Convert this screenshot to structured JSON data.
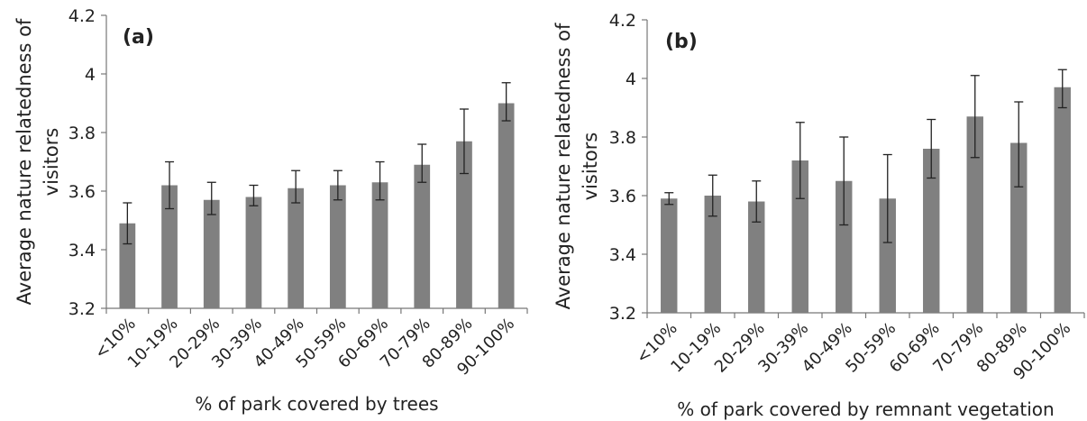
{
  "chart_data": [
    {
      "type": "bar",
      "panel_label": "(a)",
      "categories": [
        "<10%",
        "10-19%",
        "20-29%",
        "30-39%",
        "40-49%",
        "50-59%",
        "60-69%",
        "70-79%",
        "80-89%",
        "90-100%"
      ],
      "values": [
        3.49,
        3.62,
        3.57,
        3.58,
        3.61,
        3.62,
        3.63,
        3.69,
        3.77,
        3.9
      ],
      "error_low": [
        3.42,
        3.54,
        3.52,
        3.55,
        3.56,
        3.57,
        3.57,
        3.63,
        3.66,
        3.84
      ],
      "error_high": [
        3.56,
        3.7,
        3.63,
        3.62,
        3.67,
        3.67,
        3.7,
        3.76,
        3.88,
        3.97
      ],
      "xlabel": "% of park covered by trees",
      "ylabel_lines": [
        "Average nature relatedness of",
        "visitors"
      ],
      "ylim": [
        3.2,
        4.2
      ],
      "yticks": [
        "3.2",
        "3.4",
        "3.6",
        "3.8",
        "4",
        "4.2"
      ],
      "grid": false,
      "bar_color": "#808080"
    },
    {
      "type": "bar",
      "panel_label": "(b)",
      "categories": [
        "<10%",
        "10-19%",
        "20-29%",
        "30-39%",
        "40-49%",
        "50-59%",
        "60-69%",
        "70-79%",
        "80-89%",
        "90-100%"
      ],
      "values": [
        3.59,
        3.6,
        3.58,
        3.72,
        3.65,
        3.59,
        3.76,
        3.87,
        3.78,
        3.97
      ],
      "error_low": [
        3.57,
        3.53,
        3.51,
        3.59,
        3.5,
        3.44,
        3.66,
        3.73,
        3.63,
        3.9
      ],
      "error_high": [
        3.61,
        3.67,
        3.65,
        3.85,
        3.8,
        3.74,
        3.86,
        4.01,
        3.92,
        4.03
      ],
      "xlabel": "% of park covered by remnant vegetation",
      "ylabel_lines": [
        "Average nature relatedness of",
        "visitors"
      ],
      "ylim": [
        3.2,
        4.2
      ],
      "yticks": [
        "3.2",
        "3.4",
        "3.6",
        "3.8",
        "4",
        "4.2"
      ],
      "grid": false,
      "bar_color": "#808080"
    }
  ]
}
